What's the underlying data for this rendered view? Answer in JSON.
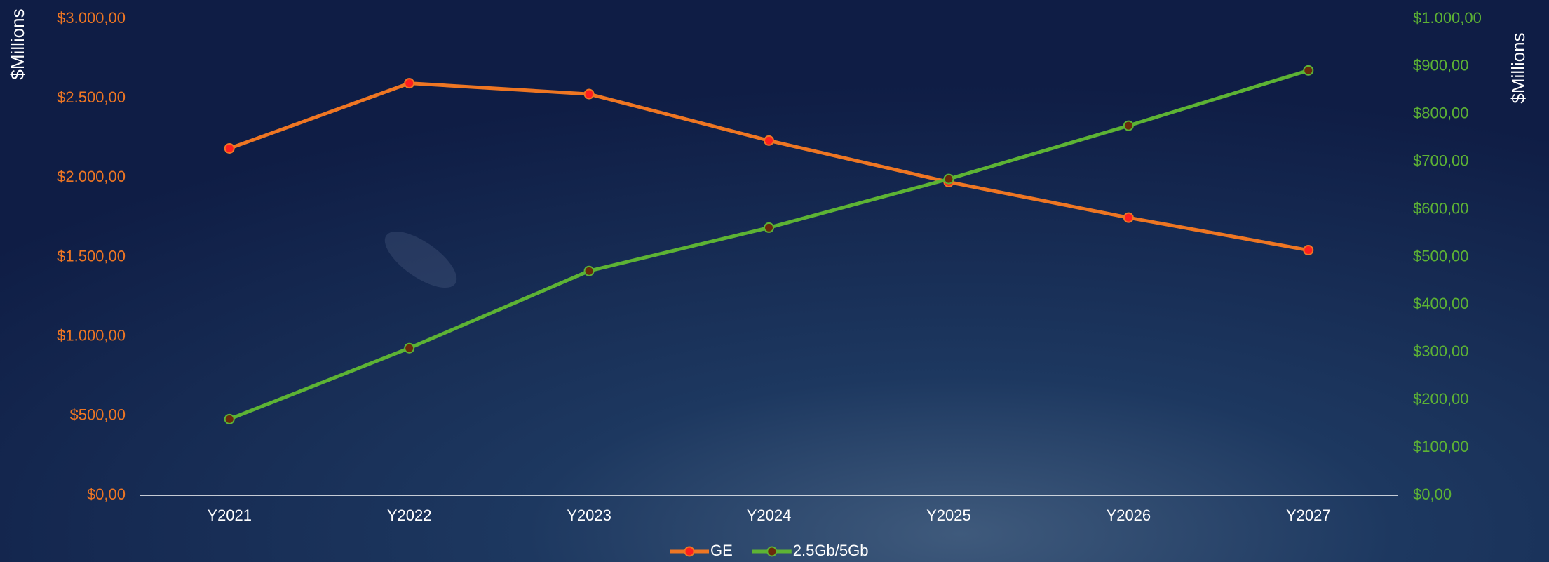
{
  "chart_data": {
    "type": "line",
    "y_title": "$Millions",
    "y2_title": "$Millions",
    "categories": [
      "Y2021",
      "Y2022",
      "Y2023",
      "Y2024",
      "Y2025",
      "Y2026",
      "Y2027"
    ],
    "series": [
      {
        "name": "GE",
        "color": "#ee7623",
        "marker_color": "#ff1e1e",
        "axis": "y",
        "values": [
          2185,
          2595,
          2527,
          2234,
          1973,
          1749,
          1544
        ]
      },
      {
        "name": "2.5Gb/5Gb",
        "color": "#5db334",
        "marker_color": "#6b2a0a",
        "axis": "y2",
        "values": [
          160,
          309,
          471,
          562,
          664,
          776,
          892
        ]
      }
    ],
    "ylim": [
      0,
      3000
    ],
    "yticks": [
      {
        "value": 0,
        "label": "$0,00"
      },
      {
        "value": 500,
        "label": "$500,00"
      },
      {
        "value": 1000,
        "label": "$1.000,00"
      },
      {
        "value": 1500,
        "label": "$1.500,00"
      },
      {
        "value": 2000,
        "label": "$2.000,00"
      },
      {
        "value": 2500,
        "label": "$2.500,00"
      },
      {
        "value": 3000,
        "label": "$3.000,00"
      }
    ],
    "y2lim": [
      0,
      1000
    ],
    "y2ticks": [
      {
        "value": 0,
        "label": "$0,00"
      },
      {
        "value": 100,
        "label": "$100,00"
      },
      {
        "value": 200,
        "label": "$200,00"
      },
      {
        "value": 300,
        "label": "$300,00"
      },
      {
        "value": 400,
        "label": "$400,00"
      },
      {
        "value": 500,
        "label": "$500,00"
      },
      {
        "value": 600,
        "label": "$600,00"
      },
      {
        "value": 700,
        "label": "$700,00"
      },
      {
        "value": 800,
        "label": "$800,00"
      },
      {
        "value": 900,
        "label": "$900,00"
      },
      {
        "value": 1000,
        "label": "$1.000,00"
      }
    ],
    "legend": "bottom"
  }
}
